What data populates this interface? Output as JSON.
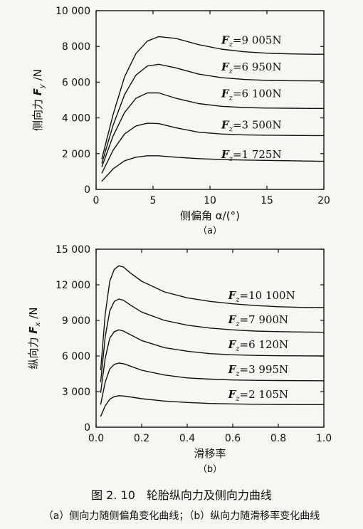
{
  "figure": {
    "caption": "图 2. 10　轮胎纵向力及侧向力曲线",
    "subcaption": "（a）侧向力随侧偏角变化曲线；（b）纵向力随滑移率变化曲线"
  },
  "chart_data": [
    {
      "id": "a",
      "type": "line",
      "panel_label": "（a）",
      "xlabel": "侧偏角 α/(°)",
      "ylabel_prefix": "侧向力 ",
      "ylabel_sym": "F",
      "ylabel_sub": "y",
      "ylabel_suffix": " /N",
      "xlim": [
        0,
        20
      ],
      "ylim": [
        0,
        10000
      ],
      "xticks": [
        0,
        5,
        10,
        15,
        20
      ],
      "xtick_labels": [
        "0",
        "5",
        "10",
        "15",
        "20"
      ],
      "yticks": [
        0,
        2000,
        4000,
        6000,
        8000,
        10000
      ],
      "ytick_labels": [
        "0",
        "2 000",
        "4 000",
        "6 000",
        "8 000",
        "10 000"
      ],
      "grid": false,
      "series": [
        {
          "name": "Fz=9 005N",
          "label_sym": "F",
          "label_sub": "z",
          "label_val": "=9 005N",
          "label_x": 11.0,
          "label_y": 8150,
          "x": [
            0.5,
            1.5,
            2.5,
            3.5,
            4.5,
            5.5,
            7,
            9,
            11,
            13,
            15,
            17,
            19,
            20
          ],
          "y": [
            1700,
            4200,
            6300,
            7600,
            8300,
            8550,
            8450,
            8100,
            7850,
            7700,
            7620,
            7580,
            7560,
            7560
          ]
        },
        {
          "name": "Fz=6 950N",
          "label_sym": "F",
          "label_sub": "z",
          "label_val": "=6 950N",
          "label_x": 11.0,
          "label_y": 6650,
          "x": [
            0.5,
            1.5,
            2.5,
            3.5,
            4.5,
            5.5,
            7,
            9,
            11,
            13,
            15,
            17,
            19,
            20
          ],
          "y": [
            1450,
            3600,
            5300,
            6400,
            6900,
            7000,
            6800,
            6450,
            6250,
            6150,
            6100,
            6080,
            6070,
            6070
          ]
        },
        {
          "name": "Fz=6 100N",
          "label_sym": "F",
          "label_sub": "z",
          "label_val": "=6 100N",
          "label_x": 11.0,
          "label_y": 5150,
          "x": [
            0.5,
            1.5,
            2.5,
            3.5,
            4.5,
            5.5,
            7,
            9,
            11,
            13,
            15,
            17,
            19,
            20
          ],
          "y": [
            1250,
            3000,
            4300,
            5100,
            5400,
            5400,
            5100,
            4800,
            4650,
            4580,
            4550,
            4540,
            4530,
            4530
          ]
        },
        {
          "name": "Fz=3 500N",
          "label_sym": "F",
          "label_sub": "z",
          "label_val": "=3 500N",
          "label_x": 11.0,
          "label_y": 3400,
          "x": [
            0.5,
            1.5,
            2.5,
            3.5,
            4.5,
            5.5,
            7,
            9,
            11,
            13,
            15,
            17,
            19,
            20
          ],
          "y": [
            900,
            2200,
            3100,
            3550,
            3700,
            3680,
            3450,
            3200,
            3100,
            3050,
            3030,
            3020,
            3010,
            3010
          ]
        },
        {
          "name": "Fz=1 725N",
          "label_sym": "F",
          "label_sub": "z",
          "label_val": "=1 725N",
          "label_x": 11.0,
          "label_y": 1750,
          "x": [
            0.5,
            1.5,
            2.5,
            3.5,
            4.5,
            5.5,
            7,
            9,
            11,
            13,
            15,
            17,
            19,
            20
          ],
          "y": [
            450,
            1150,
            1600,
            1800,
            1880,
            1880,
            1800,
            1720,
            1670,
            1640,
            1620,
            1600,
            1580,
            1570
          ]
        }
      ]
    },
    {
      "id": "b",
      "type": "line",
      "panel_label": "（b）",
      "xlabel": "滑移率",
      "ylabel_prefix": "纵向力 ",
      "ylabel_sym": "F",
      "ylabel_sub": "x",
      "ylabel_suffix": " /N",
      "xlim": [
        0,
        1.0
      ],
      "ylim": [
        0,
        15000
      ],
      "xticks": [
        0,
        0.2,
        0.4,
        0.6,
        0.8,
        1.0
      ],
      "xtick_labels": [
        "0.0",
        "0.2",
        "0.4",
        "0.6",
        "0.8",
        "1.0"
      ],
      "yticks": [
        0,
        3000,
        6000,
        9000,
        12000,
        15000
      ],
      "ytick_labels": [
        "0",
        "3 000",
        "6 000",
        "9 000",
        "12 000",
        "15 000"
      ],
      "grid": false,
      "series": [
        {
          "name": "Fz=10 100N",
          "label_sym": "F",
          "label_sub": "z",
          "label_val": "=10 100N",
          "label_x": 0.58,
          "label_y": 10800,
          "x": [
            0.02,
            0.04,
            0.06,
            0.08,
            0.1,
            0.12,
            0.15,
            0.2,
            0.3,
            0.4,
            0.5,
            0.6,
            0.7,
            0.8,
            0.9,
            1.0
          ],
          "y": [
            4800,
            9500,
            12300,
            13300,
            13600,
            13500,
            13000,
            12300,
            11400,
            10900,
            10600,
            10400,
            10250,
            10150,
            10100,
            10080
          ]
        },
        {
          "name": "Fz=7 900N",
          "label_sym": "F",
          "label_sub": "z",
          "label_val": "=7 900N",
          "label_x": 0.58,
          "label_y": 8750,
          "x": [
            0.02,
            0.04,
            0.06,
            0.08,
            0.1,
            0.12,
            0.15,
            0.2,
            0.3,
            0.4,
            0.5,
            0.6,
            0.7,
            0.8,
            0.9,
            1.0
          ],
          "y": [
            3800,
            7600,
            9800,
            10600,
            10800,
            10700,
            10300,
            9700,
            9000,
            8600,
            8350,
            8200,
            8100,
            8050,
            8020,
            8000
          ]
        },
        {
          "name": "Fz=6 120N",
          "label_sym": "F",
          "label_sub": "z",
          "label_val": "=6 120N",
          "label_x": 0.58,
          "label_y": 6650,
          "x": [
            0.02,
            0.04,
            0.06,
            0.08,
            0.1,
            0.12,
            0.15,
            0.2,
            0.3,
            0.4,
            0.5,
            0.6,
            0.7,
            0.8,
            0.9,
            1.0
          ],
          "y": [
            2900,
            5800,
            7500,
            8050,
            8200,
            8100,
            7800,
            7300,
            6700,
            6400,
            6200,
            6100,
            6050,
            6020,
            6010,
            6000
          ]
        },
        {
          "name": "Fz=3 995N",
          "label_sym": "F",
          "label_sub": "z",
          "label_val": "=3 995N",
          "label_x": 0.58,
          "label_y": 4550,
          "x": [
            0.02,
            0.04,
            0.06,
            0.08,
            0.1,
            0.12,
            0.15,
            0.2,
            0.3,
            0.4,
            0.5,
            0.6,
            0.7,
            0.8,
            0.9,
            1.0
          ],
          "y": [
            1900,
            3800,
            4900,
            5300,
            5400,
            5350,
            5150,
            4800,
            4400,
            4150,
            4050,
            3980,
            3950,
            3930,
            3920,
            3910
          ]
        },
        {
          "name": "Fz=2 105N",
          "label_sym": "F",
          "label_sub": "z",
          "label_val": "=2 105N",
          "label_x": 0.58,
          "label_y": 2450,
          "x": [
            0.02,
            0.04,
            0.06,
            0.08,
            0.1,
            0.12,
            0.15,
            0.2,
            0.3,
            0.4,
            0.5,
            0.6,
            0.7,
            0.8,
            0.9,
            1.0
          ],
          "y": [
            900,
            1800,
            2350,
            2580,
            2650,
            2630,
            2550,
            2400,
            2200,
            2080,
            2000,
            1960,
            1930,
            1910,
            1900,
            1900
          ]
        }
      ]
    }
  ]
}
